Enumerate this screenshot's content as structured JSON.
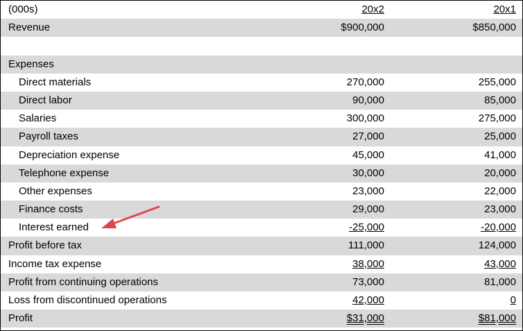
{
  "header": {
    "label": "(000s)",
    "col1": "20x2",
    "col2": "20x1"
  },
  "rows": [
    {
      "label": "Revenue",
      "v1": "$900,000",
      "v2": "$850,000"
    },
    {
      "label": "",
      "v1": "",
      "v2": ""
    },
    {
      "label": "Expenses",
      "v1": "",
      "v2": ""
    },
    {
      "label": "Direct materials",
      "v1": "270,000",
      "v2": "255,000"
    },
    {
      "label": "Direct labor",
      "v1": "90,000",
      "v2": "85,000"
    },
    {
      "label": "Salaries",
      "v1": "300,000",
      "v2": "275,000"
    },
    {
      "label": "Payroll taxes",
      "v1": "27,000",
      "v2": "25,000"
    },
    {
      "label": "Depreciation expense",
      "v1": "45,000",
      "v2": "41,000"
    },
    {
      "label": "Telephone expense",
      "v1": "30,000",
      "v2": "20,000"
    },
    {
      "label": "Other expenses",
      "v1": "23,000",
      "v2": "22,000"
    },
    {
      "label": "Finance costs",
      "v1": "29,000",
      "v2": "23,000"
    },
    {
      "label": "Interest earned",
      "v1": "-25,000",
      "v2": "-20,000"
    },
    {
      "label": "Profit before tax",
      "v1": "111,000",
      "v2": "124,000"
    },
    {
      "label": "Income tax expense",
      "v1": "38,000",
      "v2": "43,000"
    },
    {
      "label": "Profit from continuing operations",
      "v1": "73,000",
      "v2": "81,000"
    },
    {
      "label": "Loss from discontinued operations",
      "v1": "42,000",
      "v2": "0"
    },
    {
      "label": "Profit",
      "v1": "$31,000",
      "v2": "$81,000"
    }
  ],
  "colors": {
    "shade": "#d9d9d9",
    "arrow": "#e0474c"
  },
  "annotation": {
    "icon": "red-arrow-icon"
  }
}
